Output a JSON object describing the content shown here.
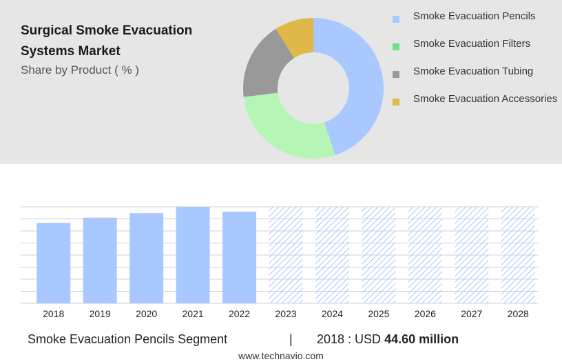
{
  "header": {
    "title": "Surgical Smoke Evacuation Systems Market",
    "subtitle": "Share by Product ( % )"
  },
  "colors": {
    "panel_bg": "#e6e6e6",
    "bar_fill": "#a8c8ff",
    "hatch": "#a8c8ff",
    "grid": "#cfcfcf"
  },
  "chart_data": [
    {
      "type": "pie",
      "donut": true,
      "categories": [
        "Smoke Evacuation Pencils",
        "Smoke Evacuation Filters",
        "Smoke Evacuation Tubing",
        "Smoke Evacuation Accessories"
      ],
      "values": [
        45,
        28,
        18,
        9
      ],
      "colors": [
        "#a8c8ff",
        "#b5f5b5",
        "#999999",
        "#e0b84a"
      ],
      "legend_swatch_colors": [
        "#a8c8ff",
        "#6fe08a",
        "#999999",
        "#e0b84a"
      ],
      "legend_position": "right"
    },
    {
      "type": "bar",
      "categories": [
        "2018",
        "2019",
        "2020",
        "2021",
        "2022",
        "2023",
        "2024",
        "2025",
        "2026",
        "2027",
        "2028"
      ],
      "values": [
        44.6,
        47.5,
        50.0,
        53.5,
        50.8,
        null,
        null,
        null,
        null,
        null,
        null
      ],
      "forecast_hatched": [
        "2023",
        "2024",
        "2025",
        "2026",
        "2027",
        "2028"
      ],
      "ylim": [
        0,
        53.5
      ],
      "grid": true
    }
  ],
  "footer": {
    "segment": "Smoke Evacuation Pencils Segment",
    "separator": "|",
    "year_label": "2018 : USD",
    "value": "44.60 million",
    "url": "www.technavio.com"
  }
}
